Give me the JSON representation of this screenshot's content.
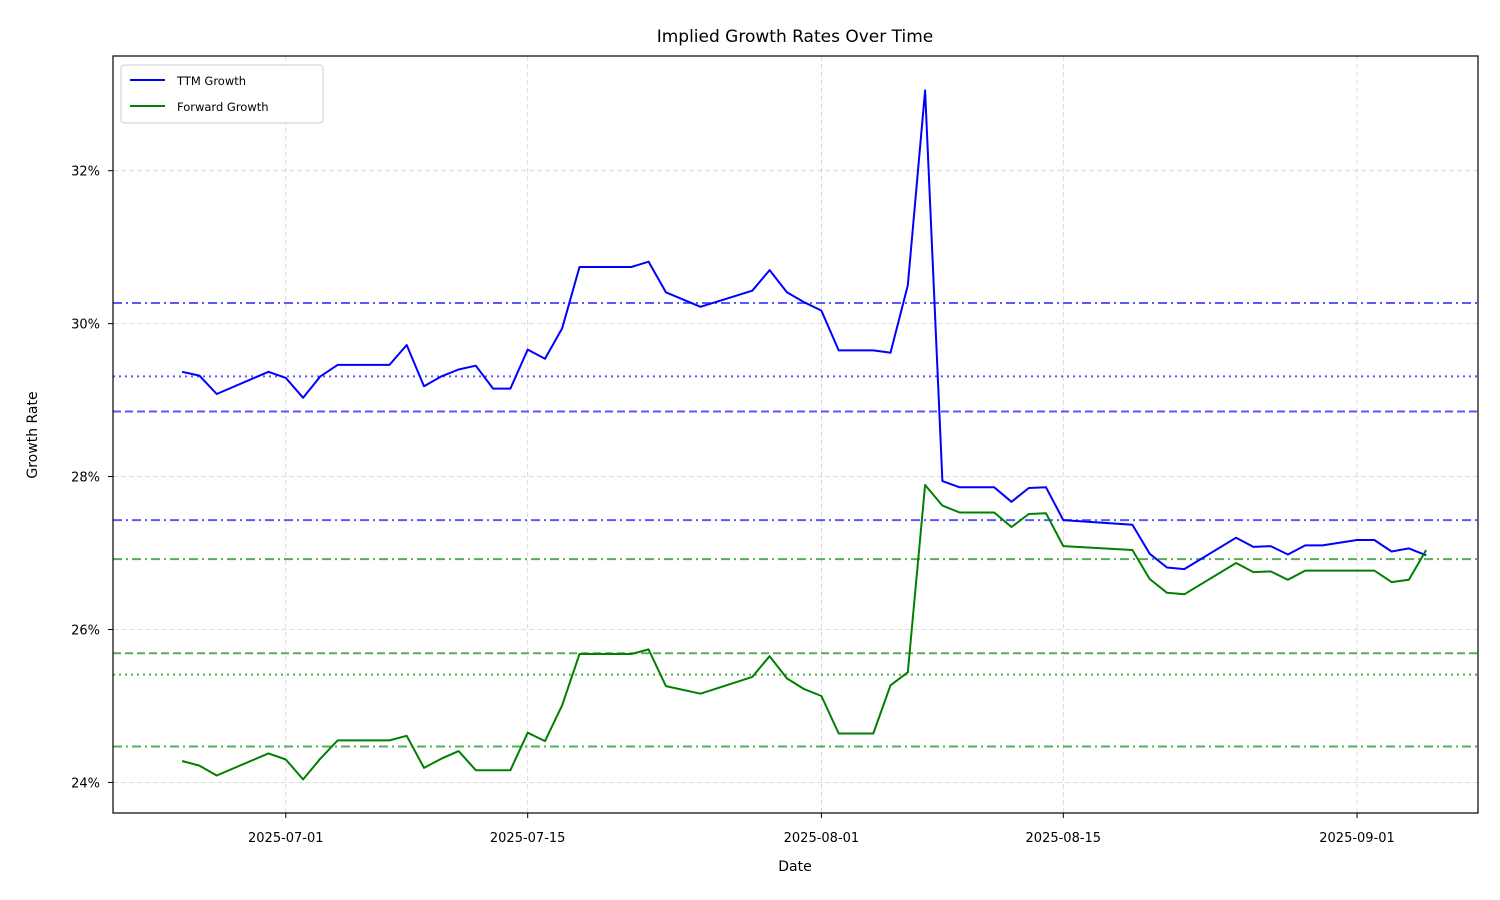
{
  "chart_data": {
    "type": "line",
    "title": "Implied Growth Rates Over Time",
    "xlabel": "Date",
    "ylabel": "Growth Rate",
    "x_ticks": [
      "2025-06-22",
      "2025-07-01",
      "2025-07-15",
      "2025-08-01",
      "2025-08-15",
      "2025-09-01",
      "2025-09-08"
    ],
    "x_tick_labels": [
      "2025-07-01",
      "2025-07-15",
      "2025-08-01",
      "2025-08-15",
      "2025-09-01"
    ],
    "x_tick_dates": [
      "2025-07-01",
      "2025-07-15",
      "2025-08-01",
      "2025-08-15",
      "2025-09-01"
    ],
    "x_range": [
      "2025-06-21",
      "2025-09-08"
    ],
    "y_ticks": [
      24,
      26,
      28,
      30,
      32
    ],
    "y_tick_labels": [
      "24%",
      "26%",
      "28%",
      "30%",
      "32%"
    ],
    "ylim": [
      23.6,
      33.5
    ],
    "grid": true,
    "legend_position": "top-left",
    "colors": {
      "ttm": "#0000ff",
      "forward": "#008000",
      "grid": "#b0b0b0"
    },
    "series": [
      {
        "name": "TTM Growth",
        "color": "#0000ff",
        "points": [
          [
            "2025-06-25",
            29.37
          ],
          [
            "2025-06-26",
            29.32
          ],
          [
            "2025-06-27",
            29.08
          ],
          [
            "2025-06-30",
            29.37
          ],
          [
            "2025-07-01",
            29.29
          ],
          [
            "2025-07-02",
            29.03
          ],
          [
            "2025-07-03",
            29.31
          ],
          [
            "2025-07-04",
            29.46
          ],
          [
            "2025-07-07",
            29.46
          ],
          [
            "2025-07-08",
            29.72
          ],
          [
            "2025-07-09",
            29.18
          ],
          [
            "2025-07-10",
            29.31
          ],
          [
            "2025-07-11",
            29.4
          ],
          [
            "2025-07-12",
            29.45
          ],
          [
            "2025-07-13",
            29.15
          ],
          [
            "2025-07-14",
            29.15
          ],
          [
            "2025-07-15",
            29.66
          ],
          [
            "2025-07-16",
            29.54
          ],
          [
            "2025-07-17",
            29.94
          ],
          [
            "2025-07-18",
            30.74
          ],
          [
            "2025-07-21",
            30.74
          ],
          [
            "2025-07-22",
            30.81
          ],
          [
            "2025-07-23",
            30.41
          ],
          [
            "2025-07-25",
            30.22
          ],
          [
            "2025-07-28",
            30.43
          ],
          [
            "2025-07-29",
            30.7
          ],
          [
            "2025-07-30",
            30.41
          ],
          [
            "2025-07-31",
            30.28
          ],
          [
            "2025-08-01",
            30.17
          ],
          [
            "2025-08-02",
            29.65
          ],
          [
            "2025-08-04",
            29.65
          ],
          [
            "2025-08-05",
            29.62
          ],
          [
            "2025-08-06",
            30.5
          ],
          [
            "2025-08-07",
            33.05
          ],
          [
            "2025-08-08",
            27.94
          ],
          [
            "2025-08-09",
            27.86
          ],
          [
            "2025-08-11",
            27.86
          ],
          [
            "2025-08-12",
            27.67
          ],
          [
            "2025-08-13",
            27.85
          ],
          [
            "2025-08-14",
            27.86
          ],
          [
            "2025-08-15",
            27.43
          ],
          [
            "2025-08-19",
            27.37
          ],
          [
            "2025-08-20",
            26.99
          ],
          [
            "2025-08-21",
            26.81
          ],
          [
            "2025-08-22",
            26.79
          ],
          [
            "2025-08-25",
            27.2
          ],
          [
            "2025-08-26",
            27.08
          ],
          [
            "2025-08-27",
            27.09
          ],
          [
            "2025-08-28",
            26.98
          ],
          [
            "2025-08-29",
            27.1
          ],
          [
            "2025-08-30",
            27.1
          ],
          [
            "2025-09-01",
            27.17
          ],
          [
            "2025-09-02",
            27.17
          ],
          [
            "2025-09-03",
            27.02
          ],
          [
            "2025-09-04",
            27.06
          ],
          [
            "2025-09-05",
            26.97
          ]
        ]
      },
      {
        "name": "Forward Growth",
        "color": "#008000",
        "points": [
          [
            "2025-06-25",
            24.28
          ],
          [
            "2025-06-26",
            24.22
          ],
          [
            "2025-06-27",
            24.09
          ],
          [
            "2025-06-30",
            24.38
          ],
          [
            "2025-07-01",
            24.3
          ],
          [
            "2025-07-02",
            24.04
          ],
          [
            "2025-07-03",
            24.31
          ],
          [
            "2025-07-04",
            24.55
          ],
          [
            "2025-07-07",
            24.55
          ],
          [
            "2025-07-08",
            24.61
          ],
          [
            "2025-07-09",
            24.19
          ],
          [
            "2025-07-10",
            24.31
          ],
          [
            "2025-07-11",
            24.41
          ],
          [
            "2025-07-12",
            24.16
          ],
          [
            "2025-07-14",
            24.16
          ],
          [
            "2025-07-15",
            24.65
          ],
          [
            "2025-07-16",
            24.54
          ],
          [
            "2025-07-17",
            25.01
          ],
          [
            "2025-07-18",
            25.68
          ],
          [
            "2025-07-21",
            25.68
          ],
          [
            "2025-07-22",
            25.74
          ],
          [
            "2025-07-23",
            25.26
          ],
          [
            "2025-07-25",
            25.16
          ],
          [
            "2025-07-28",
            25.38
          ],
          [
            "2025-07-29",
            25.65
          ],
          [
            "2025-07-30",
            25.36
          ],
          [
            "2025-07-31",
            25.22
          ],
          [
            "2025-08-01",
            25.13
          ],
          [
            "2025-08-02",
            24.64
          ],
          [
            "2025-08-04",
            24.64
          ],
          [
            "2025-08-05",
            25.27
          ],
          [
            "2025-08-06",
            25.44
          ],
          [
            "2025-08-07",
            27.89
          ],
          [
            "2025-08-08",
            27.62
          ],
          [
            "2025-08-09",
            27.53
          ],
          [
            "2025-08-11",
            27.53
          ],
          [
            "2025-08-12",
            27.34
          ],
          [
            "2025-08-13",
            27.51
          ],
          [
            "2025-08-14",
            27.52
          ],
          [
            "2025-08-15",
            27.09
          ],
          [
            "2025-08-19",
            27.04
          ],
          [
            "2025-08-20",
            26.66
          ],
          [
            "2025-08-21",
            26.48
          ],
          [
            "2025-08-22",
            26.46
          ],
          [
            "2025-08-25",
            26.87
          ],
          [
            "2025-08-26",
            26.75
          ],
          [
            "2025-08-27",
            26.76
          ],
          [
            "2025-08-28",
            26.65
          ],
          [
            "2025-08-29",
            26.77
          ],
          [
            "2025-09-02",
            26.77
          ],
          [
            "2025-09-03",
            26.62
          ],
          [
            "2025-09-04",
            26.65
          ],
          [
            "2025-09-05",
            27.04
          ]
        ]
      }
    ],
    "reference_lines": [
      {
        "series": "TTM Growth",
        "value": 30.27,
        "style": "dashdot"
      },
      {
        "series": "TTM Growth",
        "value": 29.31,
        "style": "dotted"
      },
      {
        "series": "TTM Growth",
        "value": 28.85,
        "style": "dashed"
      },
      {
        "series": "TTM Growth",
        "value": 27.43,
        "style": "dashdot"
      },
      {
        "series": "Forward Growth",
        "value": 26.92,
        "style": "dashdot"
      },
      {
        "series": "Forward Growth",
        "value": 25.69,
        "style": "dashed"
      },
      {
        "series": "Forward Growth",
        "value": 25.41,
        "style": "dotted"
      },
      {
        "series": "Forward Growth",
        "value": 24.47,
        "style": "dashdot"
      }
    ]
  }
}
